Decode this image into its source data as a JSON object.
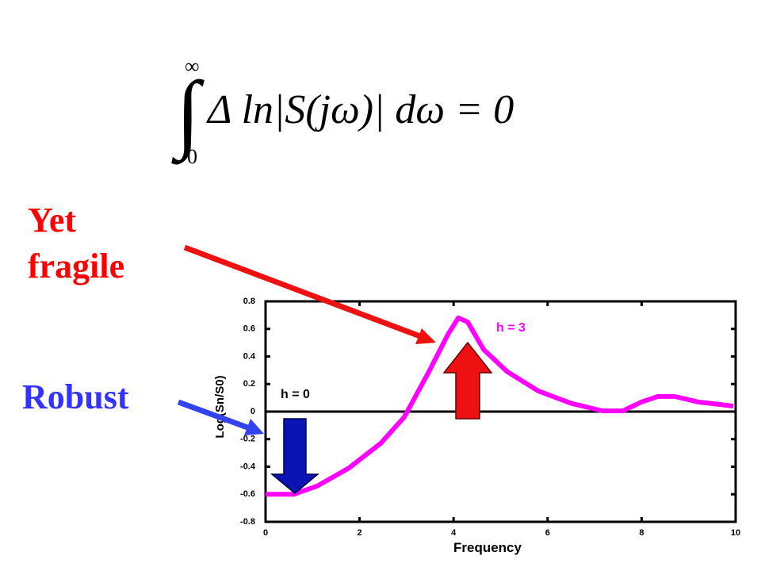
{
  "equation": {
    "integral_upper": "∞",
    "integral_lower": "0",
    "expression": "Δ ln|S(jω)| dω = 0"
  },
  "annotations": {
    "fragile_line1": "Yet",
    "fragile_line2": "fragile",
    "robust": "Robust"
  },
  "chart_data": {
    "type": "line",
    "xlabel": "Frequency",
    "ylabel": "Log(Sn/S0)",
    "x": [
      0,
      0.6,
      1.1,
      1.77,
      2.45,
      2.95,
      3.46,
      3.88,
      4.1,
      4.3,
      4.64,
      5.14,
      5.8,
      6.5,
      7.17,
      7.6,
      8.0,
      8.35,
      8.7,
      9.2,
      9.95
    ],
    "series": [
      {
        "color": "#ff00ff",
        "values": [
          -0.6,
          -0.6,
          -0.54,
          -0.41,
          -0.23,
          -0.04,
          0.28,
          0.56,
          0.68,
          0.65,
          0.45,
          0.29,
          0.15,
          0.06,
          0.005,
          0.005,
          0.07,
          0.11,
          0.11,
          0.07,
          0.04
        ]
      }
    ],
    "xlim": [
      0,
      10
    ],
    "xticks": [
      0,
      2,
      4,
      6,
      8,
      10
    ],
    "ylim": [
      -0.8,
      0.8
    ],
    "yticks": [
      -0.8,
      -0.6,
      -0.4,
      -0.2,
      0,
      0.2,
      0.4,
      0.6,
      0.8
    ],
    "annotations": {
      "high": "h = 3",
      "low": "h = 0"
    }
  }
}
